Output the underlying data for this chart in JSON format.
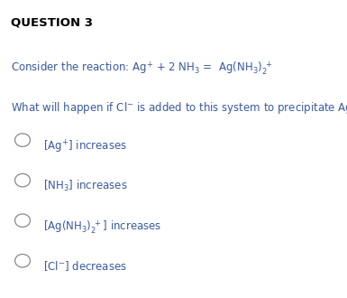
{
  "title": "QUESTION 3",
  "bg_color": "#ffffff",
  "title_color": "#000000",
  "text_color": "#3a5a9c",
  "option_color": "#3a5a9c",
  "circle_color": "#888888",
  "title_fontsize": 9.5,
  "body_fontsize": 8.5,
  "option_fontsize": 8.5,
  "fig_width": 3.85,
  "fig_height": 3.3,
  "dpi": 100
}
